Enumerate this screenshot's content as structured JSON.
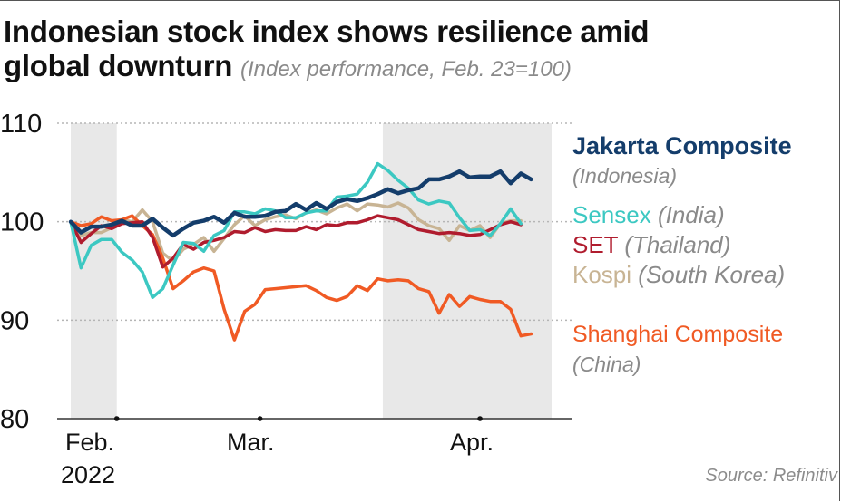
{
  "header": {
    "title_line1": "Indonesian stock index shows resilience amid",
    "title_line2": "global downturn",
    "subtitle": "(Index performance, Feb. 23=100)"
  },
  "source": "Source: Refinitiv",
  "legend": {
    "jakarta_name": "Jakarta Composite",
    "jakarta_country": "(Indonesia)",
    "sensex_name": "Sensex",
    "sensex_country": "(India)",
    "set_name": "SET",
    "set_country": "(Thailand)",
    "kospi_name": "Kospi",
    "kospi_country": "(South Korea)",
    "shanghai_name": "Shanghai Composite",
    "shanghai_country": "(China)"
  },
  "chart_data": {
    "type": "line",
    "title": "Indonesian stock index shows resilience amid global downturn",
    "subtitle": "(Index performance, Feb. 23=100)",
    "xlabel": "",
    "ylabel": "",
    "ylim": [
      80,
      110
    ],
    "yticks": [
      80,
      90,
      100,
      110
    ],
    "xlim": [
      0,
      47
    ],
    "xticks": [
      {
        "label": "Feb.",
        "sublabel": "2022",
        "x": 4.5
      },
      {
        "label": "Mar.",
        "x": 18.5
      },
      {
        "label": "Apr.",
        "x": 40
      }
    ],
    "shaded_ranges": [
      [
        0,
        4.5
      ],
      [
        30.5,
        47
      ]
    ],
    "colors": {
      "jakarta": "#143d6b",
      "sensex": "#3cc8c2",
      "set": "#b01c2e",
      "kospi": "#c8b494",
      "shanghai": "#f05a24",
      "shade": "#e8e8e8",
      "grid": "#b5b5b5",
      "axis": "#333333"
    },
    "series": [
      {
        "name": "Jakarta Composite (Indonesia)",
        "key": "jakarta",
        "width": 4.5,
        "values": [
          100,
          98.9,
          99.5,
          99.5,
          99.7,
          100.1,
          99.6,
          99.6,
          100.3,
          99.4,
          98.6,
          99.3,
          99.9,
          100.1,
          100.5,
          99.9,
          100.9,
          100.5,
          100.5,
          100.6,
          101.0,
          101.1,
          101.8,
          101.2,
          101.9,
          101.3,
          102.0,
          102.3,
          102.1,
          102.4,
          102.8,
          103.3,
          102.9,
          103.2,
          103.4,
          104.3,
          104.3,
          104.6,
          105.1,
          104.5,
          104.6,
          104.6,
          105.1,
          103.9,
          104.9,
          104.3
        ]
      },
      {
        "name": "Sensex (India)",
        "key": "sensex",
        "width": 3.5,
        "values": [
          100,
          95.3,
          97.6,
          98.2,
          98.2,
          96.9,
          96.1,
          94.9,
          92.3,
          93.2,
          95.6,
          97.9,
          97.8,
          97.0,
          98.6,
          99.1,
          101.0,
          101.0,
          100.8,
          101.3,
          101.1,
          100.4,
          100.4,
          100.9,
          101.1,
          101.1,
          102.5,
          102.6,
          102.8,
          104.0,
          105.9,
          105.2,
          104.2,
          103.4,
          102.2,
          101.8,
          102.1,
          101.9,
          100.4,
          99.1,
          99.2,
          98.6,
          99.8,
          101.3,
          99.8
        ]
      },
      {
        "name": "SET (Thailand)",
        "key": "set",
        "width": 3.5,
        "values": [
          100,
          97.9,
          98.8,
          99.6,
          99.3,
          99.8,
          99.9,
          100.0,
          98.4,
          95.4,
          96.3,
          97.7,
          97.2,
          97.9,
          98.1,
          98.4,
          99.0,
          98.9,
          99.4,
          99.0,
          99.2,
          99.1,
          99.1,
          99.5,
          99.2,
          99.7,
          99.6,
          99.9,
          99.9,
          100.2,
          100.6,
          100.4,
          100.2,
          99.7,
          99.2,
          99.0,
          98.8,
          98.9,
          98.8,
          98.6,
          98.7,
          99.2,
          99.7,
          100.0,
          99.7
        ]
      },
      {
        "name": "Kospi (South Korea)",
        "key": "kospi",
        "width": 3.5,
        "values": [
          100,
          98.6,
          98.9,
          98.9,
          99.4,
          100.2,
          100.0,
          101.2,
          100.0,
          96.8,
          96.0,
          97.2,
          97.7,
          98.4,
          97.0,
          98.3,
          99.7,
          100.6,
          99.6,
          100.2,
          100.5,
          100.7,
          100.3,
          100.9,
          101.2,
          100.8,
          101.4,
          101.8,
          101.1,
          101.8,
          101.7,
          101.5,
          101.9,
          101.4,
          100.2,
          99.6,
          99.3,
          98.1,
          99.6,
          99.1,
          99.6,
          98.4,
          99.8,
          100.1,
          100.1
        ]
      },
      {
        "name": "Shanghai Composite (China)",
        "key": "shanghai",
        "width": 3.5,
        "values": [
          100,
          99.6,
          99.8,
          100.5,
          100.1,
          100.2,
          100.6,
          99.6,
          98.7,
          96.3,
          93.2,
          94.0,
          94.9,
          95.3,
          95.0,
          91.1,
          88.0,
          90.9,
          91.6,
          93.1,
          93.2,
          93.3,
          93.4,
          93.5,
          93.0,
          92.3,
          92.0,
          92.4,
          93.5,
          93.0,
          94.2,
          94.0,
          94.1,
          94.0,
          93.2,
          92.9,
          90.7,
          92.6,
          91.4,
          92.4,
          92.1,
          91.9,
          91.9,
          91.1,
          88.4,
          88.6
        ]
      }
    ]
  }
}
